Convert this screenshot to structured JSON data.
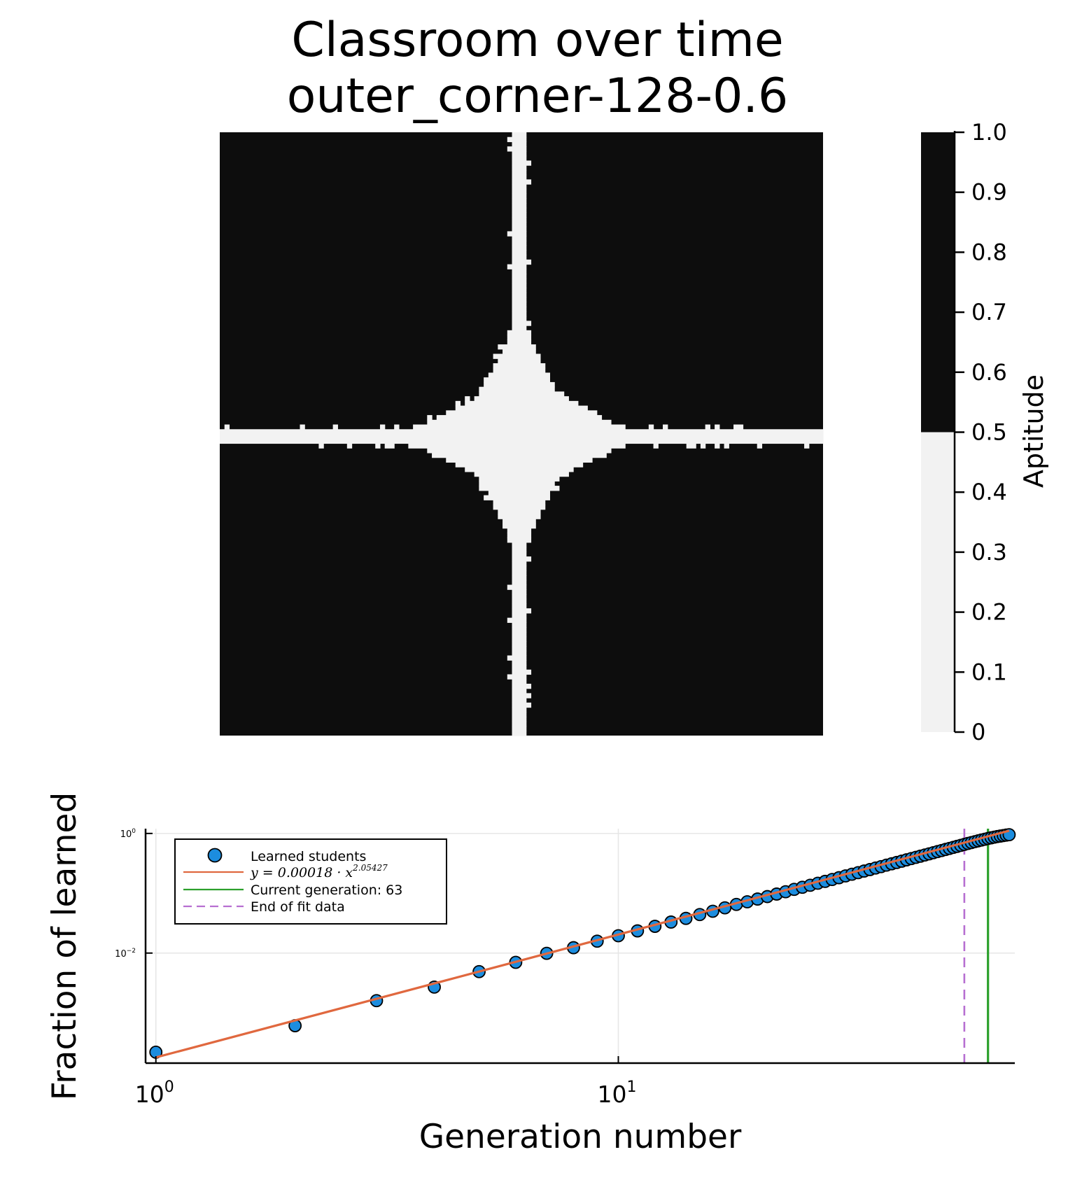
{
  "colors": {
    "dark": "#0d0d0d",
    "light": "#f2f2f2",
    "scatter": "#1c8ddf",
    "fit": "#e0683f",
    "current": "#2ca02c",
    "end_fit": "#b76fd1",
    "grid": "#e6e6e6"
  },
  "chart_data": [
    {
      "type": "heatmap",
      "title_line1": "Classroom over time",
      "title_line2": "outer_corner-128-0.6",
      "grid_size": 128,
      "value_range": [
        0,
        1
      ],
      "threshold": 0.5,
      "low_value": 0,
      "high_value": 1,
      "colorbar": {
        "label": "Aptitude",
        "ticks": [
          "0",
          "0.1",
          "0.2",
          "0.3",
          "0.4",
          "0.5",
          "0.6",
          "0.7",
          "0.8",
          "0.9",
          "1.0"
        ],
        "tick_values": [
          0,
          0.1,
          0.2,
          0.3,
          0.4,
          0.5,
          0.6,
          0.7,
          0.8,
          0.9,
          1.0
        ],
        "colors": [
          "#f2f2f2",
          "#0d0d0d"
        ]
      },
      "light_region": {
        "description_of_shape": "cross",
        "center_col": 63,
        "center_row": 64,
        "vertical_arm_half_width_cells": [
          1,
          2
        ],
        "horizontal_arm_half_width_cells": [
          1,
          2
        ],
        "bulge_half_extent_cells": 32,
        "bulge_peak_half_width_cells": 15
      }
    },
    {
      "type": "scatter",
      "x_scale": "log",
      "y_scale": "log",
      "xlabel": "Generation number",
      "ylabel": "Fraction of learned",
      "xlim": [
        0.95,
        72
      ],
      "ylim_log10": [
        -3.84,
        0.08
      ],
      "x_ticks": [
        {
          "base": "10",
          "exp": "0",
          "value": 1
        },
        {
          "base": "10",
          "exp": "1",
          "value": 10
        }
      ],
      "y_ticks": [
        {
          "base": "10",
          "exp": "0",
          "value": 1
        },
        {
          "base": "10",
          "exp": "−2",
          "value": 0.01
        }
      ],
      "grid": true,
      "legend_position": "top-left",
      "series": [
        {
          "name": "Learned students",
          "kind": "scatter",
          "points": [
            [
              1,
              0.00022
            ],
            [
              2,
              0.00061
            ],
            [
              3,
              0.0016
            ],
            [
              4,
              0.0027
            ],
            [
              5,
              0.0049
            ],
            [
              6,
              0.007
            ],
            [
              7,
              0.0099
            ],
            [
              8,
              0.0123
            ],
            [
              9,
              0.0158
            ],
            [
              10,
              0.0195
            ],
            [
              11,
              0.0235
            ],
            [
              12,
              0.028
            ],
            [
              13,
              0.033
            ],
            [
              14,
              0.038
            ],
            [
              15,
              0.044
            ],
            [
              16,
              0.05
            ],
            [
              17,
              0.057
            ],
            [
              18,
              0.065
            ],
            [
              19,
              0.072
            ],
            [
              20,
              0.08
            ],
            [
              21,
              0.088
            ],
            [
              22,
              0.097
            ],
            [
              23,
              0.106
            ],
            [
              24,
              0.116
            ],
            [
              25,
              0.126
            ],
            [
              26,
              0.136
            ],
            [
              27,
              0.147
            ],
            [
              28,
              0.158
            ],
            [
              29,
              0.17
            ],
            [
              30,
              0.182
            ],
            [
              31,
              0.195
            ],
            [
              32,
              0.208
            ],
            [
              33,
              0.221
            ],
            [
              34,
              0.235
            ],
            [
              35,
              0.249
            ],
            [
              36,
              0.264
            ],
            [
              37,
              0.279
            ],
            [
              38,
              0.295
            ],
            [
              39,
              0.311
            ],
            [
              40,
              0.327
            ],
            [
              41,
              0.344
            ],
            [
              42,
              0.362
            ],
            [
              43,
              0.38
            ],
            [
              44,
              0.398
            ],
            [
              45,
              0.417
            ],
            [
              46,
              0.436
            ],
            [
              47,
              0.456
            ],
            [
              48,
              0.476
            ],
            [
              49,
              0.497
            ],
            [
              50,
              0.518
            ],
            [
              51,
              0.54
            ],
            [
              52,
              0.562
            ],
            [
              53,
              0.585
            ],
            [
              54,
              0.608
            ],
            [
              55,
              0.632
            ],
            [
              56,
              0.656
            ],
            [
              57,
              0.68
            ],
            [
              58,
              0.704
            ],
            [
              59,
              0.728
            ],
            [
              60,
              0.752
            ],
            [
              61,
              0.776
            ],
            [
              62,
              0.8
            ],
            [
              63,
              0.824
            ],
            [
              64,
              0.846
            ],
            [
              65,
              0.867
            ],
            [
              66,
              0.887
            ],
            [
              67,
              0.905
            ],
            [
              68,
              0.922
            ],
            [
              69,
              0.938
            ],
            [
              70,
              0.953
            ]
          ]
        },
        {
          "name": "y = 0.00018 · x",
          "exponent_label": "2.05427",
          "kind": "line",
          "coefficient": 0.00018,
          "exponent": 2.05427,
          "x_range": [
            1,
            70
          ]
        },
        {
          "name": "Current generation: 63",
          "kind": "vline",
          "x": 63
        },
        {
          "name": "End of fit data",
          "kind": "vline_dashed",
          "x": 56
        }
      ]
    }
  ]
}
